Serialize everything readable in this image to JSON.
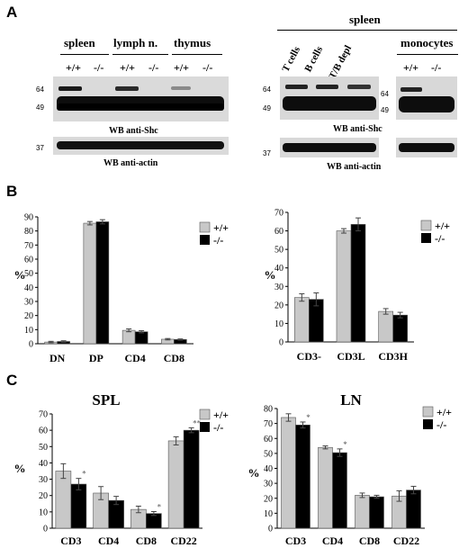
{
  "panel_a": {
    "letter": "A",
    "left": {
      "tissues": [
        "spleen",
        "lymph n.",
        "thymus"
      ],
      "genotypes": [
        "+/+",
        "-/-",
        "+/+",
        "-/-",
        "+/+",
        "-/-"
      ],
      "mw_shc": [
        "64",
        "49"
      ],
      "mw_actin": "37",
      "wb_shc": "WB anti-Shc",
      "wb_actin": "WB anti-actin"
    },
    "right": {
      "group": "spleen",
      "cell_types": [
        "T cells",
        "B cells",
        "T/B depl"
      ],
      "monocytes": "monocytes",
      "genotypes": [
        "+/+",
        "-/-"
      ],
      "mw_shc": [
        "64",
        "49"
      ],
      "mw_shc_mono": "64",
      "mw_shc_mono_49": "49",
      "mw_actin": "37",
      "wb_shc": "WB anti-Shc",
      "wb_actin": "WB anti-actin"
    }
  },
  "panel_b": {
    "letter": "B"
  },
  "panel_c": {
    "letter": "C"
  },
  "colors": {
    "wt": "#c8c8c8",
    "ko": "#000000"
  },
  "legend": {
    "wt": "+/+",
    "ko": "-/-"
  },
  "chart_data": [
    {
      "type": "bar",
      "title": "",
      "ylabel": "%",
      "ylim": [
        0,
        90
      ],
      "yticks": [
        0,
        10,
        20,
        30,
        40,
        50,
        60,
        70,
        80,
        90
      ],
      "categories": [
        "DN",
        "DP",
        "CD4",
        "CD8"
      ],
      "series": [
        {
          "name": "+/+",
          "values": [
            1.2,
            85.5,
            9.5,
            3.2
          ],
          "errors": [
            0.5,
            1.2,
            1.0,
            0.5
          ]
        },
        {
          "name": "-/-",
          "values": [
            1.6,
            86.5,
            8.5,
            3.0
          ],
          "errors": [
            0.5,
            1.5,
            0.8,
            0.4
          ]
        }
      ],
      "significance": [
        "",
        "",
        "",
        ""
      ]
    },
    {
      "type": "bar",
      "title": "",
      "ylabel": "%",
      "ylim": [
        0,
        70
      ],
      "yticks": [
        0,
        10,
        20,
        30,
        40,
        50,
        60,
        70
      ],
      "categories": [
        "CD3-",
        "CD3L",
        "CD3H"
      ],
      "series": [
        {
          "name": "+/+",
          "values": [
            24,
            60,
            16.5
          ],
          "errors": [
            2.0,
            1.2,
            1.5
          ]
        },
        {
          "name": "-/-",
          "values": [
            23,
            63.5,
            14.5
          ],
          "errors": [
            3.5,
            3.5,
            1.5
          ]
        }
      ],
      "significance": [
        "",
        "",
        ""
      ]
    },
    {
      "type": "bar",
      "title": "SPL",
      "ylabel": "%",
      "ylim": [
        0,
        70
      ],
      "yticks": [
        0,
        10,
        20,
        30,
        40,
        50,
        60,
        70
      ],
      "categories": [
        "CD3",
        "CD4",
        "CD8",
        "CD22"
      ],
      "series": [
        {
          "name": "+/+",
          "values": [
            35,
            21.5,
            11.5,
            53.5
          ],
          "errors": [
            4.5,
            4.0,
            2.0,
            2.5
          ]
        },
        {
          "name": "-/-",
          "values": [
            27,
            17,
            9,
            60
          ],
          "errors": [
            3.5,
            2.5,
            1.2,
            1.5
          ]
        }
      ],
      "significance": [
        "*",
        "",
        "*",
        "**"
      ]
    },
    {
      "type": "bar",
      "title": "LN",
      "ylabel": "%",
      "ylim": [
        0,
        80
      ],
      "yticks": [
        0,
        10,
        20,
        30,
        40,
        50,
        60,
        70,
        80
      ],
      "categories": [
        "CD3",
        "CD4",
        "CD8",
        "CD22"
      ],
      "series": [
        {
          "name": "+/+",
          "values": [
            74,
            54,
            22,
            21.5
          ],
          "errors": [
            2.5,
            1.0,
            1.5,
            3.5
          ]
        },
        {
          "name": "-/-",
          "values": [
            69,
            50.5,
            21,
            25.5
          ],
          "errors": [
            2.0,
            2.5,
            1.0,
            2.5
          ]
        }
      ],
      "significance": [
        "*",
        "*",
        "",
        ""
      ]
    }
  ]
}
